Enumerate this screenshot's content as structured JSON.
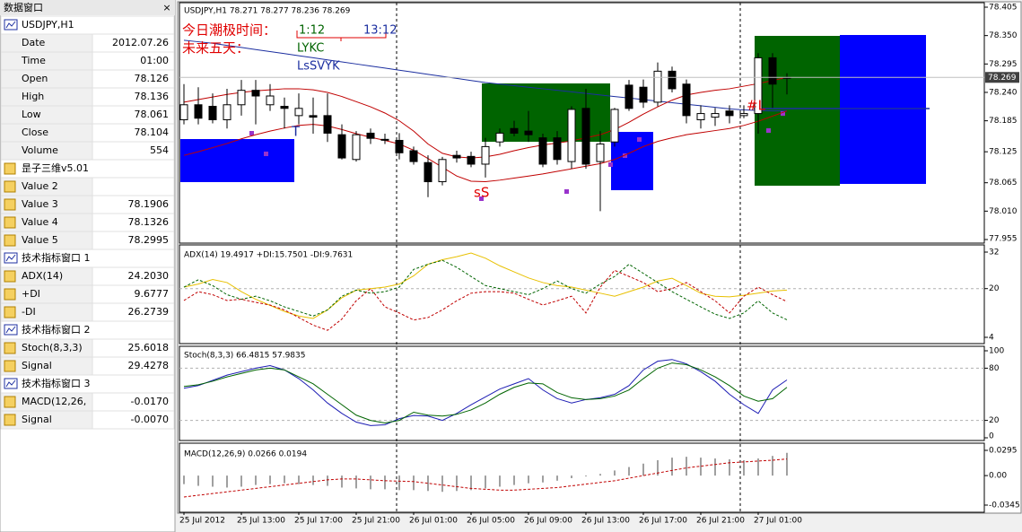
{
  "data_window": {
    "title": "数据窗口",
    "close": "×",
    "groups": [
      {
        "name": "USDJPY,H1",
        "items": [
          {
            "label": "Date",
            "value": "2012.07.26"
          },
          {
            "label": "Time",
            "value": "01:00"
          },
          {
            "label": "Open",
            "value": "78.126"
          },
          {
            "label": "High",
            "value": "78.136"
          },
          {
            "label": "Low",
            "value": "78.061"
          },
          {
            "label": "Close",
            "value": "78.104"
          },
          {
            "label": "Volume",
            "value": "554"
          }
        ]
      },
      {
        "name": "昰子三维v5.01",
        "items": [
          {
            "label": "Value 2"
          },
          {
            "label": "Value 3",
            "value": "78.1906"
          },
          {
            "label": "Value 4",
            "value": "78.1326"
          },
          {
            "label": "Value 5",
            "value": "78.2995"
          }
        ]
      },
      {
        "name": "技术指标窗口 1",
        "items": [
          {
            "label": "ADX(14)",
            "value": "24.2030"
          },
          {
            "label": "+DI",
            "value": "9.6777"
          },
          {
            "label": "-DI",
            "value": "26.2739"
          }
        ]
      },
      {
        "name": "技术指标窗口 2",
        "items": [
          {
            "label": "Stoch(8,3,3)",
            "value": "25.6018"
          },
          {
            "label": "Signal",
            "value": "29.4278"
          }
        ]
      },
      {
        "name": "技术指标窗口 3",
        "items": [
          {
            "label": "MACD(12,26,",
            "value": "-0.0170"
          },
          {
            "label": "Signal",
            "value": "-0.0070"
          }
        ]
      }
    ]
  },
  "time_axis": {
    "labels": [
      "25 Jul 2012",
      "25 Jul 13:00",
      "25 Jul 17:00",
      "25 Jul 21:00",
      "26 Jul 01:00",
      "26 Jul 05:00",
      "26 Jul 09:00",
      "26 Jul 13:00",
      "26 Jul 17:00",
      "26 Jul 21:00",
      "27 Jul 01:00"
    ]
  },
  "chart_data": [
    {
      "type": "candlestick",
      "title": "USDJPY,H1  78.271 78.277 78.236 78.269",
      "ylim": [
        77.955,
        78.405
      ],
      "yticks": [
        78.405,
        {
          "value": 78.35,
          "label": "78.350"
        },
        78.295,
        {
          "value": 78.24,
          "label": "78.240"
        },
        78.185,
        78.125,
        78.065,
        {
          "value": 78.01,
          "label": "78.010"
        },
        77.955
      ],
      "grid": false,
      "last_price": 78.269,
      "ohlc": [
        [
          78.187,
          78.256,
          78.178,
          78.216
        ],
        [
          78.216,
          78.25,
          78.178,
          78.19
        ],
        [
          78.213,
          78.238,
          78.18,
          78.187
        ],
        [
          78.187,
          78.247,
          78.17,
          78.216
        ],
        [
          78.216,
          78.264,
          78.195,
          78.244
        ],
        [
          78.244,
          78.264,
          78.178,
          78.233
        ],
        [
          78.216,
          78.256,
          78.204,
          78.233
        ],
        [
          78.213,
          78.23,
          78.17,
          78.209
        ],
        [
          78.195,
          78.238,
          78.178,
          78.209
        ],
        [
          78.195,
          78.23,
          78.16,
          78.192
        ],
        [
          78.195,
          78.238,
          78.144,
          78.161
        ],
        [
          78.158,
          78.178,
          78.11,
          78.113
        ],
        [
          78.11,
          78.165,
          78.106,
          78.158
        ],
        [
          78.161,
          78.17,
          78.14,
          78.151
        ],
        [
          78.149,
          78.16,
          78.14,
          78.148
        ],
        [
          78.147,
          78.161,
          78.11,
          78.123
        ],
        [
          78.127,
          78.135,
          78.1,
          78.106
        ],
        [
          78.104,
          78.118,
          78.037,
          78.067
        ],
        [
          78.067,
          78.115,
          78.06,
          78.11
        ],
        [
          78.118,
          78.127,
          78.104,
          78.113
        ],
        [
          78.116,
          78.125,
          78.095,
          78.101
        ],
        [
          78.101,
          78.152,
          78.075,
          78.135
        ],
        [
          78.144,
          78.17,
          78.135,
          78.161
        ],
        [
          78.17,
          78.185,
          78.155,
          78.161
        ],
        [
          78.165,
          78.204,
          78.144,
          78.158
        ],
        [
          78.152,
          78.16,
          78.095,
          78.101
        ],
        [
          78.152,
          78.165,
          78.1,
          78.11
        ],
        [
          78.106,
          78.213,
          78.092,
          78.207
        ],
        [
          78.209,
          78.247,
          78.092,
          78.101
        ],
        [
          78.106,
          78.165,
          78.01,
          78.14
        ],
        [
          78.144,
          78.21,
          78.135,
          78.207
        ],
        [
          78.254,
          78.264,
          78.204,
          78.209
        ],
        [
          78.25,
          78.265,
          78.21,
          78.221
        ],
        [
          78.221,
          78.298,
          78.213,
          78.281
        ],
        [
          78.281,
          78.29,
          78.24,
          78.247
        ],
        [
          78.256,
          78.265,
          78.18,
          78.195
        ],
        [
          78.187,
          78.215,
          78.17,
          78.199
        ],
        [
          78.192,
          78.21,
          78.175,
          78.199
        ],
        [
          78.204,
          78.215,
          78.18,
          78.195
        ],
        [
          78.195,
          78.215,
          78.19,
          78.199
        ],
        [
          78.199,
          78.316,
          78.16,
          78.307
        ],
        [
          78.307,
          78.316,
          78.21,
          78.256
        ],
        [
          78.269,
          78.277,
          78.236,
          78.269
        ]
      ],
      "series": [
        {
          "color": "#1c2fa0",
          "values": [
            78.341,
            78.338,
            78.335,
            78.331,
            78.327,
            78.323,
            78.319,
            78.315,
            78.311,
            78.307,
            78.303,
            78.299,
            78.295,
            78.291,
            78.287,
            78.283,
            78.279,
            78.275,
            78.271,
            78.267,
            78.263,
            78.259,
            78.256,
            78.253,
            78.25,
            78.247,
            78.244,
            78.241,
            78.238,
            78.235,
            78.232,
            78.229,
            78.226,
            78.223,
            78.22,
            78.217,
            78.214,
            78.211,
            78.208,
            78.206,
            78.205,
            78.204,
            78.204
          ]
        },
        {
          "color": "#c00000",
          "values": [
            78.221,
            78.226,
            78.231,
            78.236,
            78.24,
            78.243,
            78.245,
            78.247,
            78.247,
            78.245,
            78.24,
            78.232,
            78.222,
            78.212,
            78.2,
            78.185,
            78.165,
            78.14,
            78.122,
            78.115,
            78.113,
            78.115,
            78.12,
            78.127,
            78.133,
            78.138,
            78.142,
            78.146,
            78.152,
            78.158,
            78.168,
            78.182,
            78.198,
            78.212,
            78.225,
            78.235,
            78.24,
            78.244,
            78.247,
            78.252,
            78.257,
            78.263,
            78.269
          ]
        },
        {
          "color": "#c00000",
          "values": [
            78.118,
            78.125,
            78.133,
            78.141,
            78.15,
            78.158,
            78.165,
            78.171,
            78.176,
            78.178,
            78.175,
            78.168,
            78.16,
            78.153,
            78.147,
            78.14,
            78.128,
            78.112,
            78.095,
            78.078,
            78.068,
            78.067,
            78.07,
            78.074,
            78.078,
            78.082,
            78.087,
            78.092,
            78.097,
            78.102,
            78.11,
            78.122,
            78.135,
            78.145,
            78.152,
            78.158,
            78.162,
            78.166,
            78.17,
            78.176,
            78.184,
            78.194,
            78.204
          ]
        }
      ],
      "annotations": [
        {
          "text": "今日潮极时间：",
          "color": "#e00000"
        },
        {
          "text": "1:12",
          "color": "#006400"
        },
        {
          "text": "13:12",
          "color": "#1c2fa0"
        },
        {
          "text": "未来五天：",
          "color": "#e00000"
        },
        {
          "text": "LYKC",
          "color": "#006400"
        },
        {
          "text": "LsSVYK",
          "color": "#1c2fa0"
        },
        {
          "text": "T",
          "color": "#1c2fa0"
        },
        {
          "text": "sS",
          "color": "#e00000"
        },
        {
          "text": "#L",
          "color": "#e00000"
        }
      ]
    },
    {
      "type": "line",
      "title": "ADX(14) 19.4917 +DI:15.7501 -DI:9.7631",
      "ylim": [
        4,
        32
      ],
      "yticks": [
        32,
        20,
        4
      ],
      "grid": true,
      "series": [
        {
          "color": "#e8c000",
          "dash": false,
          "values": [
            20.5,
            21.5,
            23,
            22,
            19,
            16.5,
            14.5,
            12.5,
            11,
            10.2,
            13,
            17,
            19.5,
            20,
            20.5,
            21.5,
            24.2,
            28,
            29.5,
            30.5,
            31.7,
            30,
            27.5,
            25.5,
            23.5,
            22,
            21,
            20.5,
            19.5,
            18.5,
            17.5,
            19,
            20.5,
            22.5,
            23.4,
            21,
            18.5,
            17.5,
            17.3,
            17.8,
            18.5,
            19.2,
            19.5
          ]
        },
        {
          "color": "#006400",
          "dash": true,
          "values": [
            20.5,
            22.9,
            21,
            18,
            16.5,
            17.5,
            16,
            14,
            12.5,
            11,
            13,
            17.5,
            19.5,
            18.5,
            19,
            20.5,
            26.3,
            28,
            29.3,
            27,
            24,
            21,
            20,
            19,
            18,
            20,
            22.5,
            20,
            18.5,
            21.5,
            24,
            28,
            25,
            22,
            19,
            16.5,
            14,
            11.6,
            10.2,
            12,
            16,
            12,
            9.76
          ]
        },
        {
          "color": "#c00000",
          "dash": true,
          "values": [
            16.1,
            19,
            18,
            16.1,
            16.5,
            15.5,
            14.6,
            13,
            10.5,
            8,
            6.3,
            10,
            16,
            20,
            14,
            12,
            9.7,
            10.5,
            13,
            16,
            18.5,
            19,
            19,
            18.5,
            16.5,
            14.6,
            16,
            17.5,
            12,
            20.5,
            26,
            24,
            22,
            19,
            20,
            22,
            19,
            16,
            12,
            17.5,
            20.5,
            18,
            15.75
          ]
        }
      ]
    },
    {
      "type": "line",
      "title": "Stoch(8,3,3) 66.4815 57.9835",
      "ylim": [
        0,
        100
      ],
      "yticks": [
        100,
        80,
        20,
        0
      ],
      "grid": true,
      "series": [
        {
          "color": "#1c1cb4",
          "dash": false,
          "values": [
            57,
            60,
            66,
            72,
            76,
            80,
            83,
            78,
            68,
            55,
            40,
            28,
            18,
            14,
            15,
            22,
            25.6,
            25,
            20,
            28,
            38,
            47,
            56,
            62,
            68,
            55,
            45,
            40,
            44,
            46,
            50,
            60,
            78,
            88,
            90,
            85,
            76,
            65,
            50,
            38,
            28,
            55,
            66.48
          ]
        },
        {
          "color": "#006400",
          "dash": false,
          "values": [
            59,
            61,
            65,
            70,
            74,
            78,
            80,
            78,
            70,
            62,
            50,
            38,
            26,
            20,
            17,
            20,
            29.4,
            26,
            25,
            27,
            32,
            40,
            50,
            58,
            63,
            62,
            52,
            46,
            44,
            45,
            48,
            55,
            68,
            80,
            86,
            84,
            78,
            70,
            60,
            48,
            42,
            45,
            57.98
          ]
        }
      ]
    },
    {
      "type": "macd",
      "title": "MACD(12,26,9) 0.0266 0.0194",
      "ylim": [
        -0.0345,
        0.0295
      ],
      "yticks": [
        0.0295,
        {
          "value": 0,
          "label": "0.00"
        },
        -0.0345
      ],
      "grid": false,
      "series": [
        {
          "kind": "bar",
          "color": "#a0a0a0",
          "values": [
            -0.01,
            -0.012,
            -0.013,
            -0.014,
            -0.013,
            -0.011,
            -0.01,
            -0.009,
            -0.01,
            -0.011,
            -0.012,
            -0.014,
            -0.015,
            -0.016,
            -0.016,
            -0.017,
            -0.017,
            -0.018,
            -0.019,
            -0.018,
            -0.017,
            -0.015,
            -0.013,
            -0.011,
            -0.009,
            -0.008,
            -0.006,
            -0.003,
            -0.001,
            0.002,
            0.006,
            0.01,
            0.014,
            0.018,
            0.021,
            0.022,
            0.021,
            0.02,
            0.019,
            0.018,
            0.02,
            0.023,
            0.0266
          ]
        },
        {
          "kind": "line",
          "color": "#c00000",
          "dash": true,
          "values": [
            -0.025,
            -0.023,
            -0.021,
            -0.019,
            -0.017,
            -0.015,
            -0.013,
            -0.011,
            -0.009,
            -0.007,
            -0.005,
            -0.004,
            -0.004,
            -0.005,
            -0.006,
            -0.0065,
            -0.007,
            -0.009,
            -0.011,
            -0.013,
            -0.015,
            -0.016,
            -0.017,
            -0.017,
            -0.016,
            -0.015,
            -0.014,
            -0.012,
            -0.01,
            -0.008,
            -0.006,
            -0.003,
            0,
            0.003,
            0.006,
            0.009,
            0.011,
            0.013,
            0.015,
            0.016,
            0.017,
            0.018,
            0.0194
          ]
        }
      ]
    }
  ]
}
